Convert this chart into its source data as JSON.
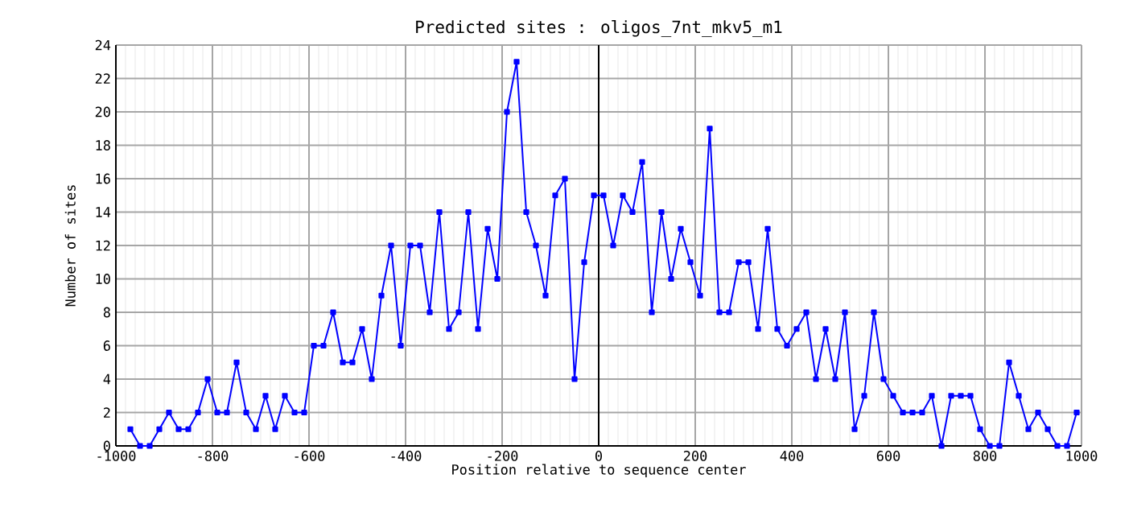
{
  "chart_data": {
    "type": "line",
    "title": "Predicted sites : oligos_7nt_mkv5_m1",
    "xlabel": "Position relative to sequence center",
    "ylabel": "Number of sites",
    "x": [
      -970,
      -950,
      -930,
      -910,
      -890,
      -870,
      -850,
      -830,
      -810,
      -790,
      -770,
      -750,
      -730,
      -710,
      -690,
      -670,
      -650,
      -630,
      -610,
      -590,
      -570,
      -550,
      -530,
      -510,
      -490,
      -470,
      -450,
      -430,
      -410,
      -390,
      -370,
      -350,
      -330,
      -310,
      -290,
      -270,
      -250,
      -230,
      -210,
      -190,
      -170,
      -150,
      -130,
      -110,
      -90,
      -70,
      -50,
      -30,
      -10,
      10,
      30,
      50,
      70,
      90,
      110,
      130,
      150,
      170,
      190,
      210,
      230,
      250,
      270,
      290,
      310,
      330,
      350,
      370,
      390,
      410,
      430,
      450,
      470,
      490,
      510,
      530,
      550,
      570,
      590,
      610,
      630,
      650,
      670,
      690,
      710,
      730,
      750,
      770,
      790,
      810,
      830,
      850,
      870,
      890,
      910,
      930,
      950,
      970,
      990
    ],
    "series": [
      {
        "color": "#0000ff",
        "values": [
          1,
          0,
          0,
          1,
          2,
          1,
          1,
          2,
          4,
          2,
          2,
          5,
          2,
          1,
          3,
          1,
          3,
          2,
          2,
          6,
          6,
          8,
          5,
          5,
          7,
          4,
          9,
          12,
          6,
          12,
          12,
          8,
          14,
          7,
          8,
          14,
          7,
          13,
          10,
          20,
          23,
          14,
          12,
          9,
          15,
          16,
          4,
          11,
          15,
          15,
          12,
          15,
          14,
          17,
          8,
          14,
          10,
          13,
          11,
          9,
          19,
          8,
          8,
          11,
          11,
          7,
          13,
          7,
          6,
          7,
          8,
          4,
          7,
          4,
          8,
          1,
          3,
          8,
          4,
          3,
          2,
          2,
          2,
          3,
          0,
          3,
          3,
          3,
          1,
          0,
          0,
          5,
          3,
          1,
          2,
          1,
          0,
          0,
          2
        ]
      }
    ],
    "xlim": [
      -1000,
      1000
    ],
    "ylim": [
      0,
      24
    ],
    "xticks": [
      -1000,
      -800,
      -600,
      -400,
      -200,
      0,
      200,
      400,
      600,
      800,
      1000
    ],
    "yticks": [
      0,
      2,
      4,
      6,
      8,
      10,
      12,
      14,
      16,
      18,
      20,
      22,
      24
    ],
    "ref_lines": [
      {
        "axis": "x",
        "value": 0,
        "color": "#000000"
      }
    ],
    "grid": true,
    "marker": "square",
    "line_style": "solid"
  }
}
